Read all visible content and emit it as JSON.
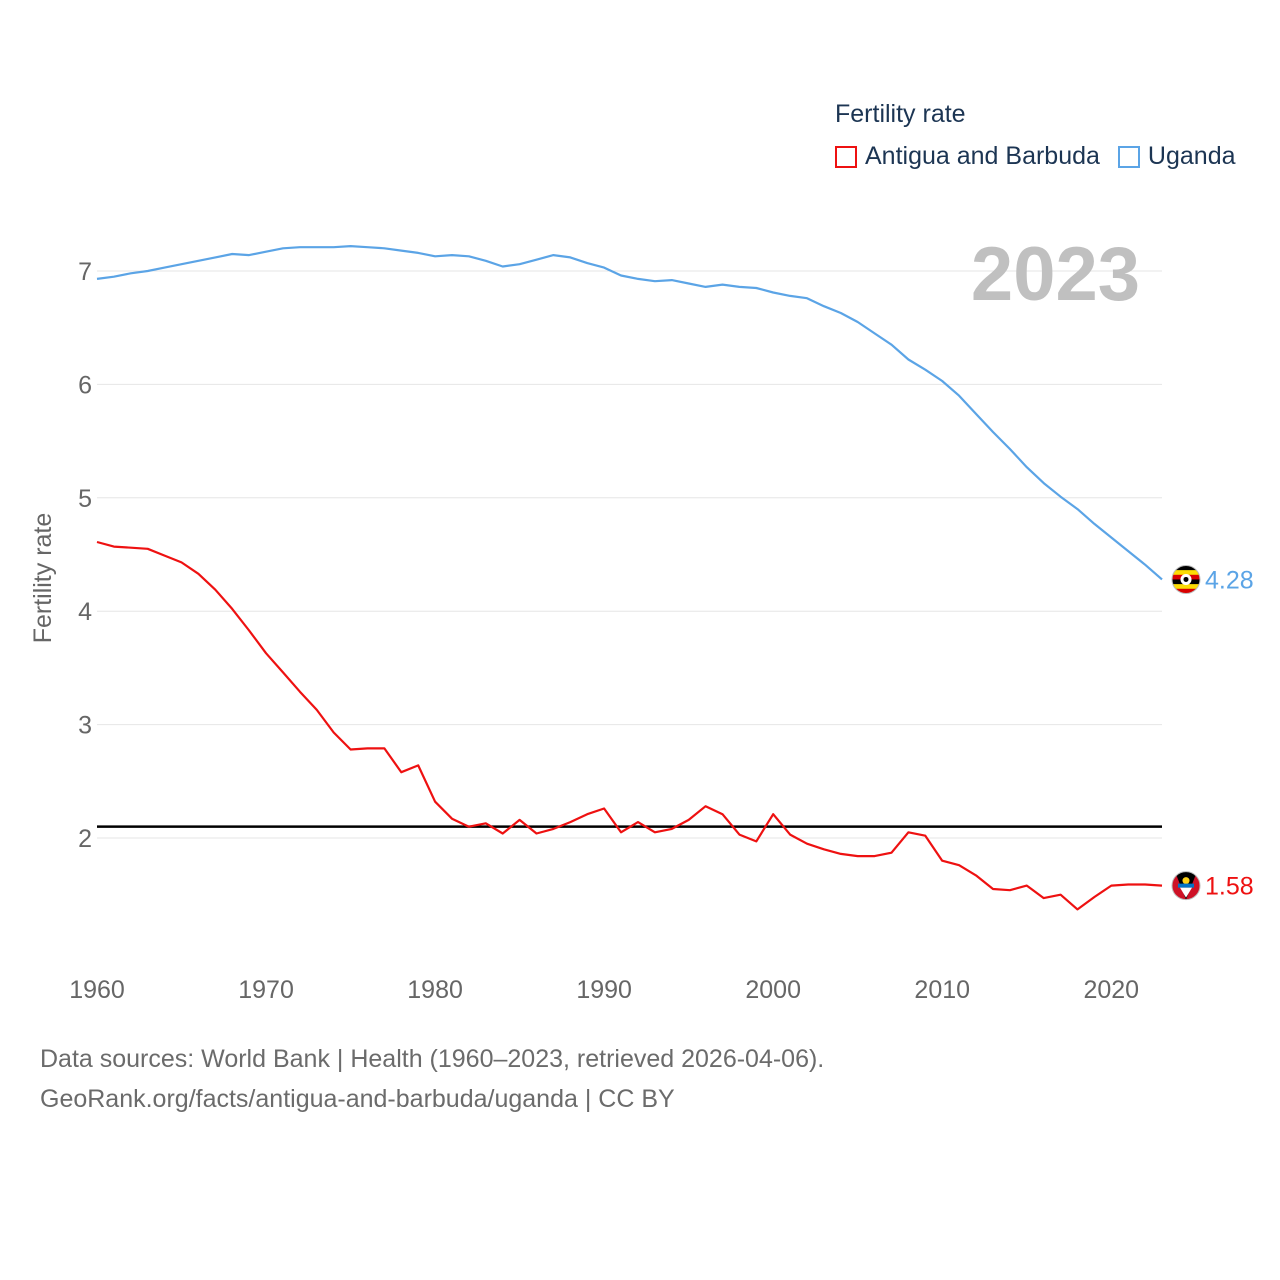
{
  "legend": {
    "title": "Fertility rate",
    "items": [
      {
        "name": "Antigua and Barbuda",
        "color": "#ee1111"
      },
      {
        "name": "Uganda",
        "color": "#5ba4e6"
      }
    ]
  },
  "footer": {
    "line1": "Data sources: World Bank | Health (1960–2023, retrieved 2026-04-06).",
    "line2": "GeoRank.org/facts/antigua-and-barbuda/uganda | CC BY"
  },
  "chart_data": {
    "type": "line",
    "year_label": "2023",
    "ylabel": "Fertility rate",
    "xlim": [
      1960,
      2023
    ],
    "ylim": [
      1.0,
      7.5
    ],
    "grid": true,
    "x_ticks": [
      1960,
      1970,
      1980,
      1990,
      2000,
      2010,
      2020
    ],
    "y_ticks": [
      2,
      3,
      4,
      5,
      6,
      7
    ],
    "reference_line": {
      "y": 2.1,
      "color": "#000000"
    },
    "x": [
      1960,
      1961,
      1962,
      1963,
      1964,
      1965,
      1966,
      1967,
      1968,
      1969,
      1970,
      1971,
      1972,
      1973,
      1974,
      1975,
      1976,
      1977,
      1978,
      1979,
      1980,
      1981,
      1982,
      1983,
      1984,
      1985,
      1986,
      1987,
      1988,
      1989,
      1990,
      1991,
      1992,
      1993,
      1994,
      1995,
      1996,
      1997,
      1998,
      1999,
      2000,
      2001,
      2002,
      2003,
      2004,
      2005,
      2006,
      2007,
      2008,
      2009,
      2010,
      2011,
      2012,
      2013,
      2014,
      2015,
      2016,
      2017,
      2018,
      2019,
      2020,
      2021,
      2022,
      2023
    ],
    "series": [
      {
        "name": "Antigua and Barbuda",
        "color": "#ee1111",
        "end_label": "1.58",
        "values": [
          4.61,
          4.57,
          4.56,
          4.55,
          4.49,
          4.43,
          4.33,
          4.19,
          4.02,
          3.83,
          3.63,
          3.46,
          3.29,
          3.13,
          2.93,
          2.78,
          2.79,
          2.79,
          2.58,
          2.64,
          2.32,
          2.17,
          2.1,
          2.13,
          2.04,
          2.16,
          2.04,
          2.08,
          2.14,
          2.21,
          2.26,
          2.05,
          2.14,
          2.05,
          2.08,
          2.16,
          2.28,
          2.21,
          2.03,
          1.97,
          2.21,
          2.03,
          1.95,
          1.9,
          1.86,
          1.84,
          1.84,
          1.87,
          2.05,
          2.02,
          1.8,
          1.76,
          1.67,
          1.55,
          1.54,
          1.58,
          1.47,
          1.5,
          1.37,
          1.48,
          1.58,
          1.59,
          1.59,
          1.58
        ]
      },
      {
        "name": "Uganda",
        "color": "#5ba4e6",
        "end_label": "4.28",
        "values": [
          6.93,
          6.95,
          6.98,
          7.0,
          7.03,
          7.06,
          7.09,
          7.12,
          7.15,
          7.14,
          7.17,
          7.2,
          7.21,
          7.21,
          7.21,
          7.22,
          7.21,
          7.2,
          7.18,
          7.16,
          7.13,
          7.14,
          7.13,
          7.09,
          7.04,
          7.06,
          7.1,
          7.14,
          7.12,
          7.07,
          7.03,
          6.96,
          6.93,
          6.91,
          6.92,
          6.89,
          6.86,
          6.88,
          6.86,
          6.85,
          6.81,
          6.78,
          6.76,
          6.69,
          6.63,
          6.55,
          6.45,
          6.35,
          6.22,
          6.13,
          6.03,
          5.9,
          5.74,
          5.58,
          5.43,
          5.27,
          5.13,
          5.01,
          4.9,
          4.77,
          4.65,
          4.53,
          4.41,
          4.28
        ]
      }
    ]
  }
}
